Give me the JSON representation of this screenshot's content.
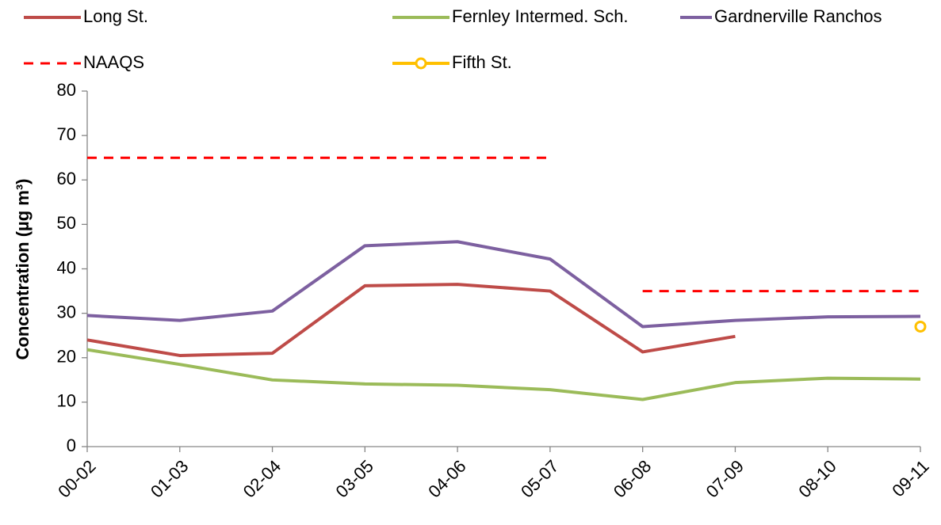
{
  "chart_data": {
    "type": "line",
    "y_label": "Concentration (µg m³)",
    "categories": [
      "00-02",
      "01-03",
      "02-04",
      "03-05",
      "04-06",
      "05-07",
      "06-08",
      "07-09",
      "08-10",
      "09-11"
    ],
    "series": [
      {
        "name": "Long St.",
        "color": "#BE4B48",
        "line_style": "solid",
        "values": [
          24,
          20.5,
          21,
          36.2,
          36.5,
          35,
          21.3,
          24.8,
          null,
          null
        ]
      },
      {
        "name": "Fernley Intermed. Sch.",
        "color": "#9BBB59",
        "line_style": "solid",
        "values": [
          21.8,
          18.5,
          15,
          14.1,
          13.8,
          12.8,
          10.6,
          14.4,
          15.4,
          15.2
        ]
      },
      {
        "name": "Gardnerville Ranchos",
        "color": "#7D60A0",
        "line_style": "solid",
        "values": [
          29.5,
          28.4,
          30.5,
          45.2,
          46.1,
          42.2,
          27,
          28.4,
          29.2,
          29.3
        ]
      },
      {
        "name": "NAAQS",
        "color": "#FF0000",
        "line_style": "dashed",
        "values": [
          65,
          65,
          65,
          65,
          65,
          65,
          35,
          35,
          35,
          35
        ]
      },
      {
        "name": "Fifth St.",
        "color": "#FFC000",
        "line_style": "solid",
        "marker": "circle",
        "values": [
          null,
          null,
          null,
          null,
          null,
          null,
          null,
          null,
          null,
          27
        ]
      }
    ],
    "ylim": [
      0,
      80
    ],
    "yticks": [
      0,
      10,
      20,
      30,
      40,
      50,
      60,
      70,
      80
    ],
    "grid": false
  }
}
